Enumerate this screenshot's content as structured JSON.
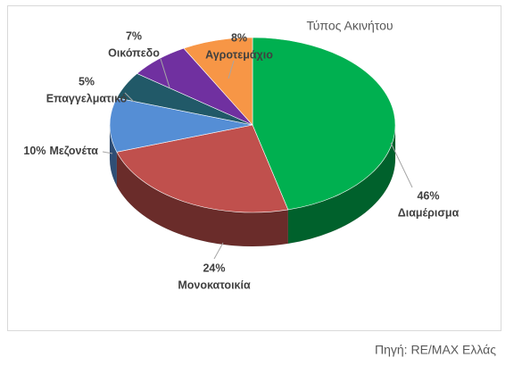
{
  "chart_data": {
    "type": "pie3d",
    "title": "Τύπος Ακινήτου",
    "categories": [
      "Διαμέρισμα",
      "Μονοκατοικία",
      "Μεζονέτα",
      "Επαγγελματικό",
      "Οικόπεδο",
      "Αγροτεμάχιο"
    ],
    "values": [
      46,
      24,
      10,
      5,
      7,
      8
    ],
    "value_labels": [
      "46%",
      "24%",
      "10%",
      "5%",
      "7%",
      "8%"
    ],
    "colors": [
      "#00b050",
      "#c0504d",
      "#558ed5",
      "#215968",
      "#7030a0",
      "#f79646"
    ]
  },
  "source": "Πηγή: RE/MAX Ελλάς"
}
